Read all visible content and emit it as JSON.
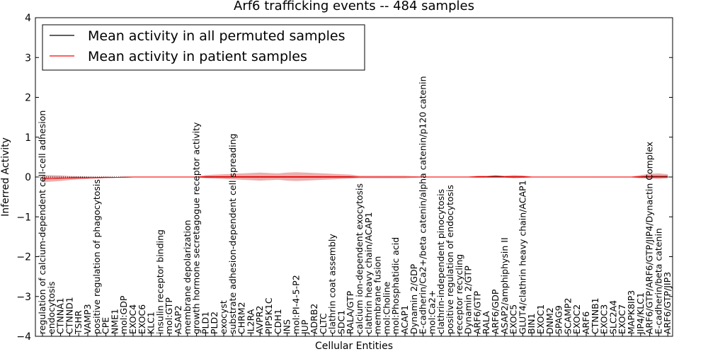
{
  "chart_data": {
    "type": "line",
    "title": "Arf6 trafficking events -- 484 samples",
    "xlabel": "Cellular Entities",
    "ylabel": "Inferred Activity",
    "ylim": [
      -4,
      4
    ],
    "yticks": [
      "4",
      "3",
      "2",
      "1",
      "0",
      "−1",
      "−2",
      "−3",
      "−4"
    ],
    "legend_position": "upper-left",
    "categories": [
      "regulation of calcium-dependent cell-cell adhesion",
      "endocytosis",
      "CTNNA1",
      "CTNND1",
      "TSHR",
      "VAMP3",
      "positive regulation of phagocytosis",
      "CPE",
      "NME1",
      "mol:GDP",
      "EXOC4",
      "EXOC6",
      "KLC1",
      "insulin receptor binding",
      "mol:GTP",
      "ASAP2",
      "membrane depolarization",
      "growth hormone secretagogue receptor activity",
      "PLD1",
      "PLD2",
      "exocyst",
      "substrate adhesion-dependent cell spreading",
      "CHRM2",
      "IL2RA",
      "AVPR2",
      "PIP5K1C",
      "CDH1",
      "INS",
      "mol:PI-4-5-P2",
      "JUP",
      "ADRB2",
      "CLTC",
      "clathrin coat assembly",
      "SDC1",
      "RALA/GTP",
      "calcium ion-dependent exocytosis",
      "clathrin heavy chain/ACAP1",
      "membrane fusion",
      "mol:Choline",
      "mol:Phosphatidic acid",
      "ACAP1",
      "Dynamin 2/GDP",
      "E-cadherin/Ca2+/beta catenin/alpha catenin/p120 catenin",
      "mol:Ca2+",
      "clathrin-independent pinocytosis",
      "positive regulation of endocytosis",
      "receptor recycling",
      "Dynamin 2/GTP",
      "ARF6/GTP",
      "RALA",
      "ARF6/GDP",
      "ASAP2/amphiphysin II",
      "EXOC5",
      "GLUT4/clathrin heavy chain/ACAP1",
      "BIN1",
      "EXOC1",
      "DNM2",
      "SPAG9",
      "SCAMP2",
      "EXOC2",
      "ARF6",
      "CTNNB1",
      "EXOC3",
      "SLC2A4",
      "EXOC7",
      "MAPK8IP3",
      "JIP4/KLC1",
      "ARF6/GTP/ARF6/GTP/JIP4/Dynactin Complex",
      "E-cadherin/beta catenin",
      "ARF6/GTP/JIP3"
    ],
    "series": [
      {
        "name": "Mean activity in all permuted samples",
        "color": "#000000",
        "values": [
          -0.04,
          -0.035,
          -0.03,
          -0.025,
          -0.02,
          -0.02,
          -0.015,
          -0.01,
          -0.01,
          -0.005,
          0,
          0,
          0,
          0,
          0,
          0,
          0,
          0,
          0,
          0,
          0,
          0,
          0,
          0,
          0,
          0,
          0,
          0,
          0,
          0,
          0,
          0,
          0,
          0,
          0,
          0,
          0,
          0,
          0,
          0,
          0,
          0,
          0,
          0,
          0,
          0,
          0,
          0,
          0,
          0,
          0,
          0,
          0,
          0,
          0,
          0,
          0,
          0,
          0,
          0,
          0,
          0,
          0,
          0,
          0,
          0,
          0,
          0,
          0,
          0
        ]
      },
      {
        "name": "Mean activity in patient samples",
        "color": "#ff0000",
        "band_color": "#e8a0a0",
        "values": [
          -0.04,
          -0.035,
          -0.03,
          -0.025,
          -0.02,
          -0.02,
          -0.015,
          -0.01,
          -0.01,
          -0.005,
          0,
          0,
          0,
          0,
          0,
          0,
          0,
          0,
          0.01,
          0.01,
          0.01,
          0.01,
          0.01,
          0.01,
          0.01,
          0.01,
          0.01,
          0.01,
          0.01,
          0.01,
          0.01,
          0.01,
          0.01,
          0.01,
          0.01,
          0,
          0,
          0,
          0,
          0,
          0,
          0,
          0,
          0,
          0,
          0,
          0,
          0,
          0.01,
          0.01,
          0.02,
          0.01,
          0.01,
          0.01,
          0,
          0,
          0,
          0,
          0,
          0,
          0,
          0,
          0,
          0,
          0,
          0,
          0.01,
          0.02,
          0.02,
          0.02
        ],
        "band_halfwidth": [
          0.09,
          0.08,
          0.07,
          0.05,
          0.04,
          0.03,
          0.02,
          0.02,
          0.01,
          0.01,
          0.01,
          0.01,
          0.01,
          0.01,
          0.01,
          0.01,
          0.01,
          0.01,
          0.04,
          0.05,
          0.06,
          0.07,
          0.08,
          0.09,
          0.1,
          0.09,
          0.08,
          0.1,
          0.11,
          0.1,
          0.09,
          0.08,
          0.07,
          0.06,
          0.05,
          0.03,
          0.03,
          0.03,
          0.03,
          0.03,
          0.03,
          0.02,
          0.01,
          0.01,
          0.01,
          0.01,
          0.01,
          0.01,
          0.02,
          0.02,
          0.03,
          0.02,
          0.04,
          0.03,
          0.01,
          0.01,
          0.01,
          0.01,
          0.01,
          0.01,
          0.01,
          0.01,
          0.01,
          0.01,
          0.01,
          0.01,
          0.04,
          0.06,
          0.07,
          0.05
        ]
      }
    ]
  }
}
